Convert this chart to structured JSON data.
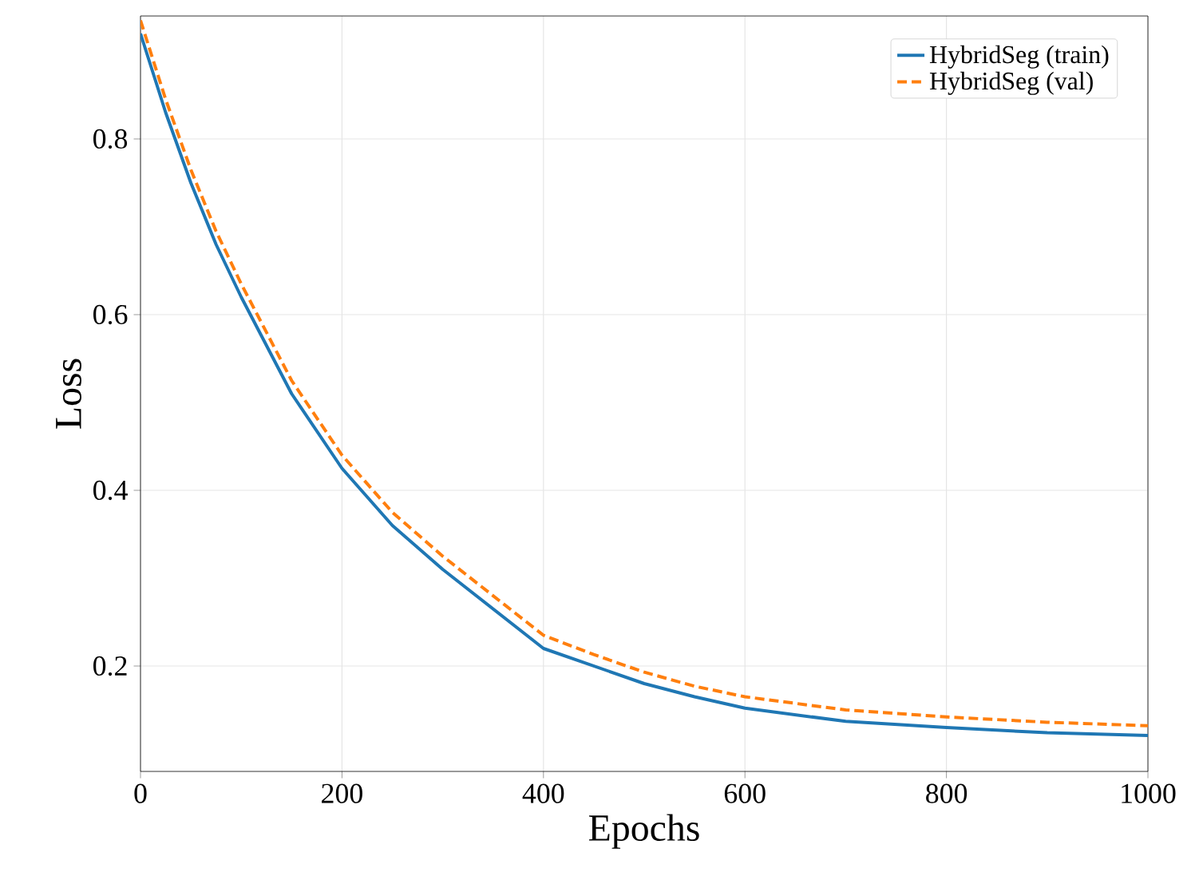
{
  "chart_data": {
    "type": "line",
    "xlabel": "Epochs",
    "ylabel": "Loss",
    "xlim": [
      0,
      1000
    ],
    "ylim": [
      0.08,
      0.94
    ],
    "xticks": [
      0,
      200,
      400,
      600,
      800,
      1000
    ],
    "yticks": [
      0.2,
      0.4,
      0.6,
      0.8
    ],
    "grid": true,
    "legend": "top right",
    "series": [
      {
        "name": "HybridSeg (train)",
        "color": "#1f77b4",
        "line_style": "solid",
        "x": [
          0,
          25,
          50,
          75,
          100,
          150,
          200,
          250,
          300,
          350,
          400,
          450,
          500,
          550,
          600,
          700,
          800,
          900,
          1000
        ],
        "values": [
          0.92,
          0.83,
          0.75,
          0.68,
          0.62,
          0.51,
          0.425,
          0.36,
          0.31,
          0.265,
          0.22,
          0.2,
          0.18,
          0.165,
          0.152,
          0.137,
          0.13,
          0.124,
          0.121
        ]
      },
      {
        "name": "HybridSeg (val)",
        "color": "#ff7f0e",
        "line_style": "dashed",
        "x": [
          0,
          25,
          50,
          75,
          100,
          150,
          200,
          250,
          300,
          350,
          400,
          450,
          500,
          550,
          600,
          700,
          800,
          900,
          1000
        ],
        "values": [
          0.935,
          0.845,
          0.765,
          0.695,
          0.635,
          0.525,
          0.44,
          0.375,
          0.325,
          0.28,
          0.235,
          0.213,
          0.193,
          0.177,
          0.165,
          0.15,
          0.142,
          0.136,
          0.132
        ]
      }
    ]
  }
}
